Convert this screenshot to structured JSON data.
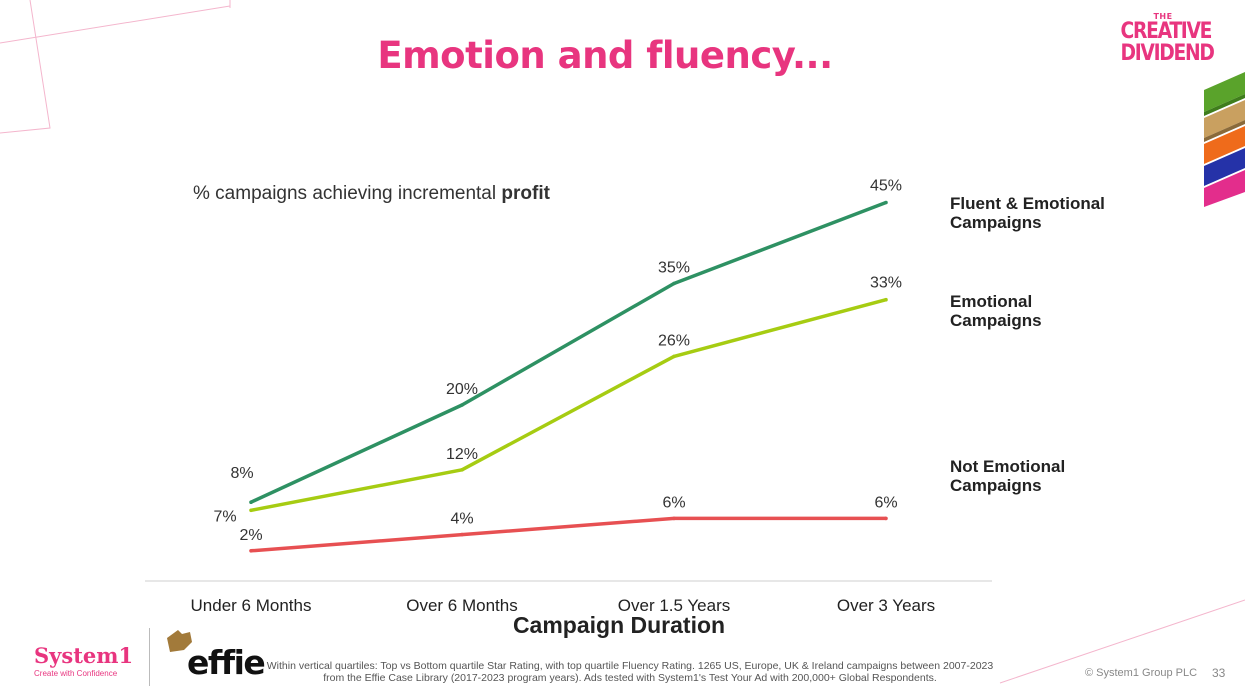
{
  "slide": {
    "title": "Emotion and fluency...",
    "brand": {
      "line1": "THE",
      "line2": "CREATIVE",
      "line3": "DIVIDEND"
    },
    "subtitle_main": "% campaigns achieving incremental ",
    "subtitle_bold": "profit",
    "footnote": "Within vertical quartiles: Top vs Bottom quartile Star Rating, with top quartile Fluency Rating. 1265 US, Europe, UK & Ireland campaigns between 2007-2023 from the Effie Case Library (2017-2023 program years). Ads tested with System1's Test Your Ad with 200,000+ Global Respondents.",
    "copyright": "© System1 Group PLC",
    "page_number": "33",
    "logos": {
      "system1": "System1",
      "system1_tagline": "Create with Confidence",
      "effie": "effie"
    },
    "colors": {
      "accent": "#e8357f"
    }
  },
  "chart_data": {
    "type": "line",
    "categories": [
      "Under 6 Months",
      "Over 6 Months",
      "Over 1.5 Years",
      "Over 3 Years"
    ],
    "xlabel": "Campaign Duration",
    "ylabel": "",
    "ylim": [
      0,
      50
    ],
    "grid": false,
    "legend_placement": "right",
    "series": [
      {
        "name": "Fluent & Emotional Campaigns",
        "color": "#2e9163",
        "values": [
          8,
          20,
          35,
          45
        ],
        "labels": [
          "8%",
          "20%",
          "35%",
          "45%"
        ]
      },
      {
        "name": "Emotional Campaigns",
        "color": "#a6cc12",
        "values": [
          7,
          12,
          26,
          33
        ],
        "labels": [
          "7%",
          "12%",
          "26%",
          "33%"
        ]
      },
      {
        "name": "Not Emotional Campaigns",
        "color": "#e75052",
        "values": [
          2,
          4,
          6,
          6
        ],
        "labels": [
          "2%",
          "4%",
          "6%",
          "6%"
        ]
      }
    ]
  }
}
